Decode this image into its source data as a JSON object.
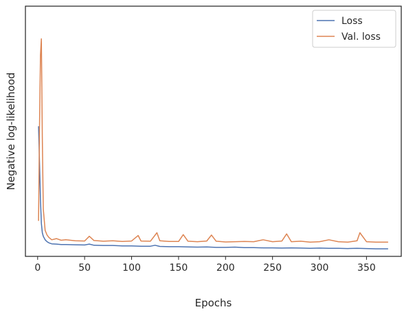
{
  "chart_data": {
    "type": "line",
    "xlabel": "Epochs",
    "ylabel": "Negative log-likelihood",
    "xlim": [
      -13,
      387
    ],
    "ylim": [
      0,
      1
    ],
    "y_ticks_labeled": false,
    "x_ticks": [
      0,
      50,
      100,
      150,
      200,
      250,
      300,
      350
    ],
    "x_tick_labels": [
      "0",
      "50",
      "100",
      "150",
      "200",
      "250",
      "300",
      "350"
    ],
    "grid": false,
    "legend_position": "top-right",
    "series": [
      {
        "name": "Loss",
        "color": "#4c72b0",
        "x": [
          1,
          2,
          3,
          4,
          5,
          6,
          8,
          10,
          12,
          15,
          20,
          25,
          30,
          40,
          50,
          55,
          60,
          70,
          80,
          90,
          100,
          110,
          120,
          125,
          130,
          140,
          150,
          160,
          170,
          180,
          190,
          200,
          210,
          220,
          230,
          240,
          250,
          260,
          270,
          280,
          290,
          300,
          310,
          320,
          330,
          340,
          350,
          360,
          373
        ],
        "y": [
          0.55,
          0.4,
          0.24,
          0.14,
          0.1,
          0.085,
          0.07,
          0.062,
          0.057,
          0.053,
          0.052,
          0.05,
          0.05,
          0.049,
          0.048,
          0.052,
          0.047,
          0.046,
          0.046,
          0.044,
          0.044,
          0.043,
          0.043,
          0.047,
          0.042,
          0.041,
          0.041,
          0.04,
          0.039,
          0.04,
          0.038,
          0.038,
          0.039,
          0.037,
          0.037,
          0.036,
          0.036,
          0.035,
          0.036,
          0.035,
          0.034,
          0.035,
          0.034,
          0.034,
          0.033,
          0.034,
          0.033,
          0.032,
          0.032
        ]
      },
      {
        "name": "Val. loss",
        "color": "#dd8452",
        "x": [
          1,
          2,
          3,
          4,
          5,
          6,
          8,
          10,
          12,
          15,
          20,
          25,
          30,
          40,
          50,
          55,
          60,
          70,
          80,
          90,
          100,
          107,
          110,
          120,
          127,
          130,
          140,
          150,
          155,
          160,
          170,
          180,
          185,
          190,
          200,
          210,
          220,
          230,
          240,
          250,
          260,
          265,
          270,
          280,
          290,
          300,
          310,
          320,
          330,
          340,
          343,
          350,
          360,
          373
        ],
        "y": [
          0.15,
          0.55,
          0.85,
          0.92,
          0.5,
          0.2,
          0.11,
          0.09,
          0.08,
          0.07,
          0.075,
          0.068,
          0.07,
          0.066,
          0.065,
          0.085,
          0.067,
          0.064,
          0.066,
          0.063,
          0.065,
          0.088,
          0.065,
          0.064,
          0.1,
          0.066,
          0.063,
          0.063,
          0.092,
          0.064,
          0.062,
          0.065,
          0.09,
          0.064,
          0.061,
          0.062,
          0.063,
          0.062,
          0.07,
          0.062,
          0.065,
          0.095,
          0.062,
          0.064,
          0.06,
          0.062,
          0.07,
          0.062,
          0.06,
          0.066,
          0.1,
          0.062,
          0.06,
          0.06
        ]
      }
    ]
  }
}
